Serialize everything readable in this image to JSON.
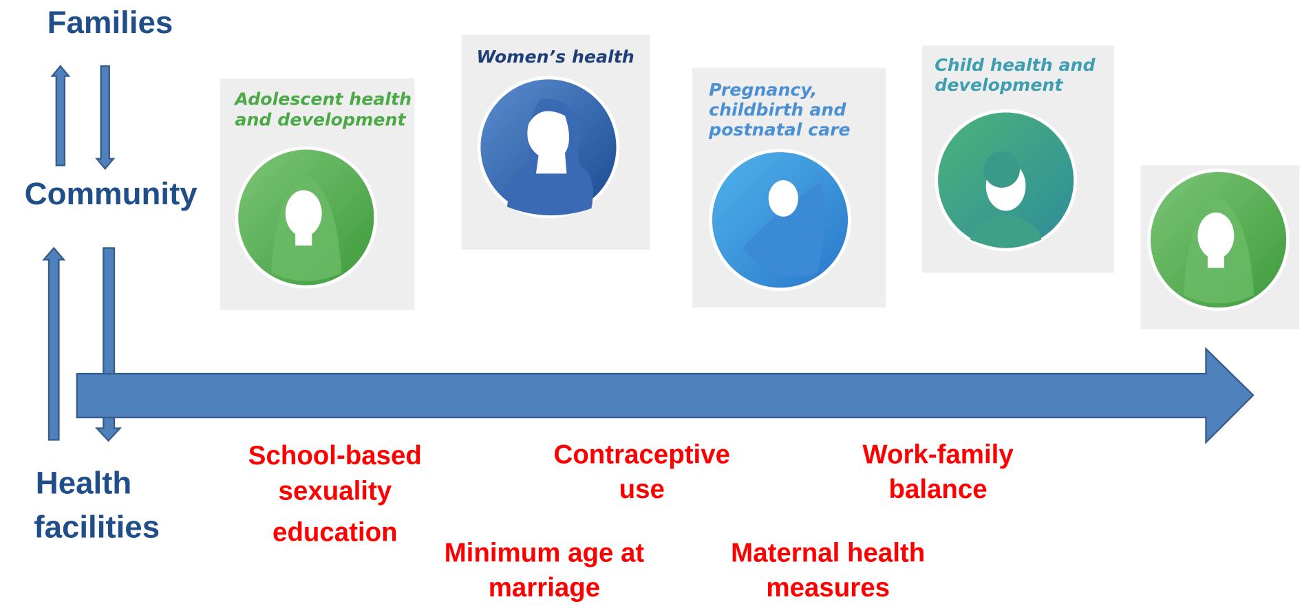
{
  "levels": [
    {
      "lines": [
        "Families"
      ]
    },
    {
      "lines": [
        "Community"
      ]
    },
    {
      "lines": [
        "Health",
        "facilities"
      ]
    }
  ],
  "stages": [
    {
      "title_lines": [
        "Adolescent health",
        "and development"
      ]
    },
    {
      "title_lines": [
        "Women’s health"
      ]
    },
    {
      "title_lines": [
        "Pregnancy,",
        "childbirth and",
        "postnatal care"
      ]
    },
    {
      "title_lines": [
        "Child health and",
        "development"
      ]
    }
  ],
  "policies": [
    {
      "lines": [
        "School-based",
        "sexuality",
        "education"
      ]
    },
    {
      "lines": [
        "Contraceptive",
        "use"
      ]
    },
    {
      "lines": [
        "Work-family",
        "balance"
      ]
    },
    {
      "lines": [
        "Minimum age at",
        "marriage"
      ]
    },
    {
      "lines": [
        "Maternal health",
        "measures"
      ]
    }
  ]
}
